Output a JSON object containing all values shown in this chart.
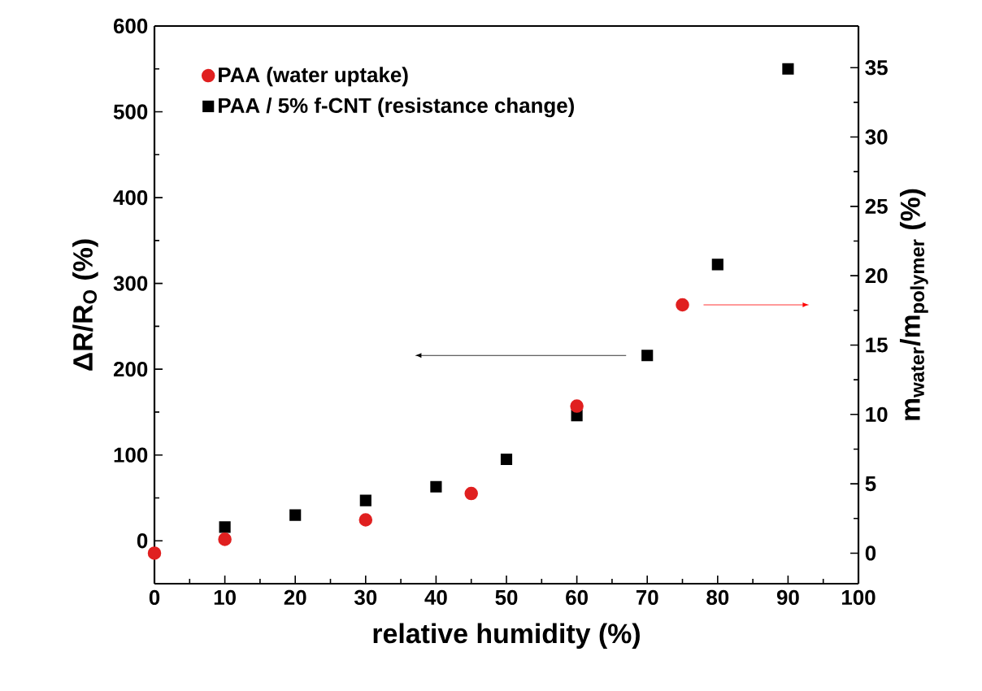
{
  "chart_data": {
    "type": "scatter",
    "xlabel": "relative humidity (%)",
    "ylabel": "ΔR/R$_{O}$ (%)",
    "y2label": "m$_{water}$/m$_{polymer}$ (%)",
    "x": [
      10,
      20,
      30,
      40,
      50,
      60,
      70,
      80,
      90
    ],
    "series": [
      {
        "name": "PAA (water uptake)",
        "color": "#e02020",
        "marker": "circle",
        "axis": "y2",
        "x": [
          0,
          10,
          30,
          45,
          60,
          75
        ],
        "values": [
          0,
          1.0,
          2.4,
          4.3,
          10.6,
          17.9
        ]
      },
      {
        "name": "PAA / 5% f-CNT (resistance change)",
        "color": "#000000",
        "marker": "square",
        "values": [
          16,
          30,
          47,
          63,
          95,
          146,
          216,
          322,
          550
        ]
      }
    ],
    "xlim": [
      0,
      100
    ],
    "xticks": [
      0,
      10,
      20,
      30,
      40,
      50,
      60,
      70,
      80,
      90,
      100
    ],
    "ylim": [
      -50,
      600
    ],
    "yticks": [
      0,
      100,
      200,
      300,
      400,
      500,
      600
    ],
    "y2lim": [
      -2.2,
      38
    ],
    "y2ticks": [
      0,
      5,
      10,
      15,
      20,
      25,
      30,
      35
    ],
    "grid": false,
    "legend": "top left"
  }
}
